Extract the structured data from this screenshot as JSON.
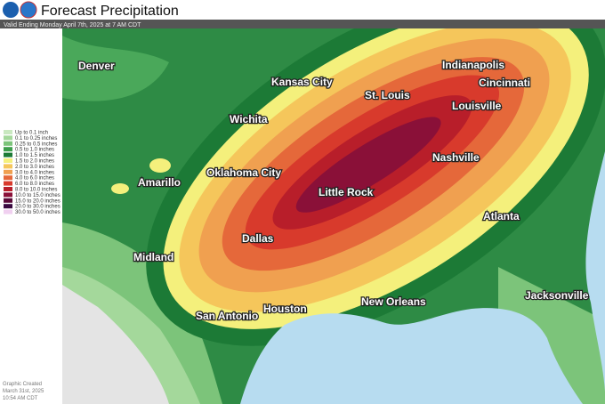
{
  "header": {
    "title": "Forecast Precipitation",
    "subtitle": "Valid Ending Monday April 7th, 2025 at 7 AM CDT"
  },
  "legend": [
    {
      "label": "Up to 0.1 inch",
      "color": "#c9e8c0"
    },
    {
      "label": "0.1 to 0.25 inches",
      "color": "#a4d89b"
    },
    {
      "label": "0.25 to 0.5 inches",
      "color": "#7cc47a"
    },
    {
      "label": "0.5 to 1.0 inches",
      "color": "#3e9e4c"
    },
    {
      "label": "1.0 to 1.5 inches",
      "color": "#1c7a36"
    },
    {
      "label": "1.5 to 2.0 inches",
      "color": "#f4f07c"
    },
    {
      "label": "2.0 to 3.0 inches",
      "color": "#f5c65b"
    },
    {
      "label": "3.0 to 4.0 inches",
      "color": "#f0a050"
    },
    {
      "label": "4.0 to 6.0 inches",
      "color": "#e5683a"
    },
    {
      "label": "6.0 to 8.0 inches",
      "color": "#d83a2c"
    },
    {
      "label": "8.0 to 10.0 inches",
      "color": "#b81e2a"
    },
    {
      "label": "10.0 to 15.0 inches",
      "color": "#8a1038"
    },
    {
      "label": "15.0 to 20.0 inches",
      "color": "#5a0a38"
    },
    {
      "label": "20.0 to 30.0 inches",
      "color": "#3a0a40"
    },
    {
      "label": "30.0 to 50.0 inches",
      "color": "#f0d0f0"
    }
  ],
  "cities": [
    "Denver",
    "Kansas City",
    "St. Louis",
    "Indianapolis",
    "Cincinnati",
    "Louisville",
    "Wichita",
    "Oklahoma City",
    "Nashville",
    "Amarillo",
    "Little Rock",
    "Atlanta",
    "Dallas",
    "Midland",
    "Houston",
    "New Orleans",
    "San Antonio",
    "Jacksonville"
  ],
  "footer": [
    "Graphic Created",
    "March 31st, 2025",
    "10:54 AM CDT"
  ]
}
